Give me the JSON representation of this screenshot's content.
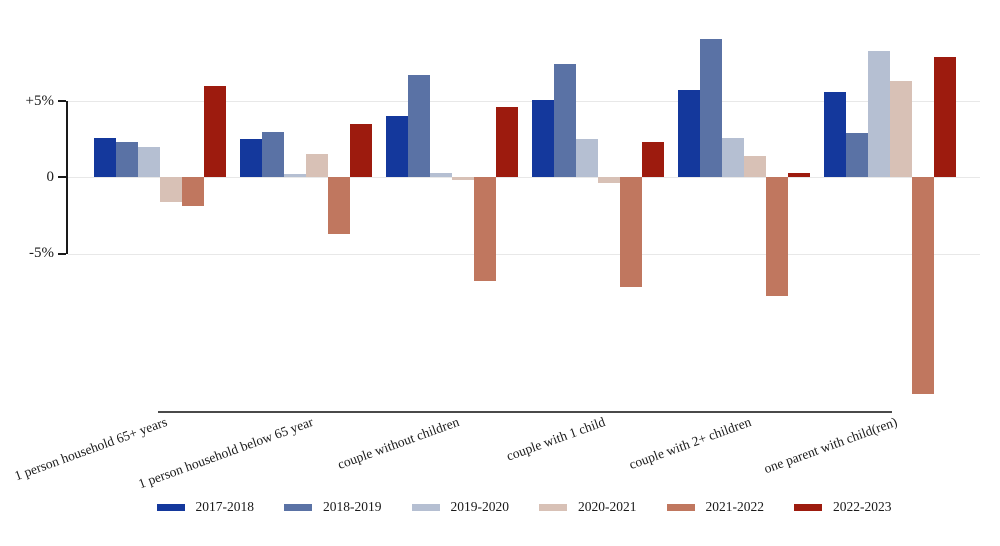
{
  "chart_data": {
    "type": "bar",
    "title": "",
    "xlabel": "",
    "ylabel": "",
    "categories": [
      "1 person household 65+ years",
      "1 person household below 65 year",
      "couple without children",
      "couple with 1 child",
      "couple with 2+ children",
      "one parent with child(ren)"
    ],
    "series": [
      {
        "name": "2017-2018",
        "color": "#14389c",
        "values": [
          2.6,
          2.5,
          4.0,
          5.1,
          5.7,
          5.6
        ]
      },
      {
        "name": "2018-2019",
        "color": "#5a72a5",
        "values": [
          2.3,
          3.0,
          6.7,
          7.4,
          9.1,
          2.9
        ]
      },
      {
        "name": "2019-2020",
        "color": "#b5bfd2",
        "values": [
          2.0,
          0.2,
          0.3,
          2.5,
          2.6,
          8.3
        ]
      },
      {
        "name": "2020-2021",
        "color": "#d8c1b6",
        "values": [
          -1.6,
          1.5,
          -0.2,
          -0.4,
          1.4,
          6.3
        ]
      },
      {
        "name": "2021-2022",
        "color": "#c0775f",
        "values": [
          -1.9,
          -3.7,
          -6.8,
          -7.2,
          -7.8,
          -14.2
        ]
      },
      {
        "name": "2022-2023",
        "color": "#9d1b0e",
        "values": [
          6.0,
          3.5,
          4.6,
          2.3,
          0.3,
          7.9
        ]
      }
    ],
    "y_axis": {
      "tick_labels": [
        "+5%",
        "0",
        "-5%"
      ],
      "tick_values": [
        5,
        0,
        -5
      ],
      "unit": "percent"
    },
    "ylim": [
      -15.5,
      10.5
    ],
    "grid": "horizontal",
    "legend_position": "bottom",
    "background_color": "#ffffff",
    "axis_text_color": "#1a1a1a"
  }
}
